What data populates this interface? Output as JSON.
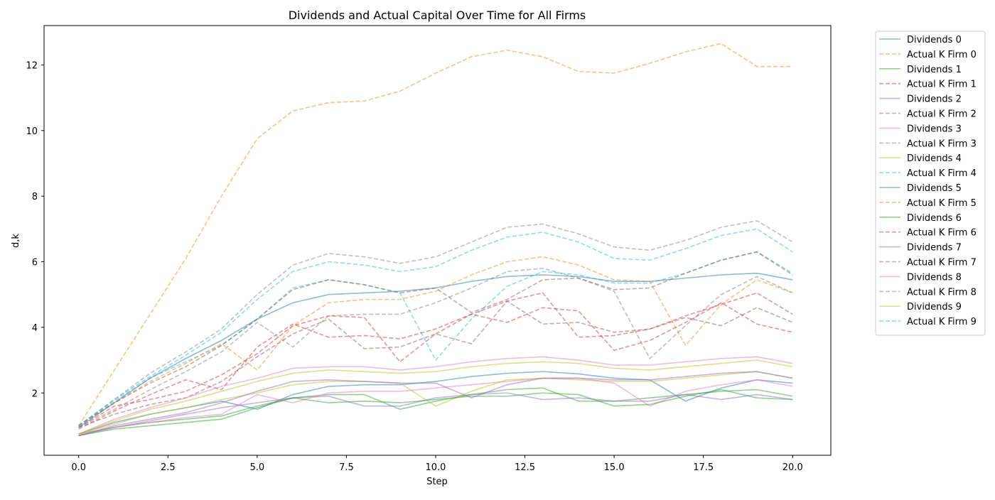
{
  "chart_data": {
    "type": "line",
    "title": "Dividends and Actual Capital Over Time for All Firms",
    "xlabel": "Step",
    "ylabel": "d,k",
    "xlim": [
      -0.97,
      21.07
    ],
    "ylim": [
      0.1,
      13.2
    ],
    "x_ticks": [
      0.0,
      2.5,
      5.0,
      7.5,
      10.0,
      12.5,
      15.0,
      17.5,
      20.0
    ],
    "x_tick_labels": [
      "0.0",
      "2.5",
      "5.0",
      "7.5",
      "10.0",
      "12.5",
      "15.0",
      "17.5",
      "20.0"
    ],
    "y_ticks": [
      2,
      4,
      6,
      8,
      10,
      12
    ],
    "y_tick_labels": [
      "2",
      "4",
      "6",
      "8",
      "10",
      "12"
    ],
    "grid": false,
    "legend_position": "outside-right",
    "x": [
      0,
      1,
      2,
      3,
      4,
      5,
      6,
      7,
      8,
      9,
      10,
      11,
      12,
      13,
      14,
      15,
      16,
      17,
      18,
      19,
      20
    ],
    "series": [
      {
        "name": "Dividends 0",
        "color": "#1f77b4",
        "dash": "solid",
        "values": [
          0.75,
          1.1,
          1.35,
          1.55,
          1.75,
          1.5,
          1.95,
          2.2,
          2.25,
          2.25,
          2.35,
          2.5,
          2.6,
          2.65,
          2.58,
          2.45,
          2.4,
          1.75,
          2.15,
          2.4,
          2.3
        ]
      },
      {
        "name": "Actual K Firm 0",
        "color": "#ff7f0e",
        "dash": "dashed",
        "values": [
          1.0,
          2.7,
          4.4,
          6.1,
          8.0,
          9.75,
          10.6,
          10.85,
          10.9,
          11.2,
          11.75,
          12.25,
          12.45,
          12.25,
          11.8,
          11.75,
          12.05,
          12.4,
          12.65,
          11.95,
          11.95
        ]
      },
      {
        "name": "Dividends 1",
        "color": "#2ca02c",
        "dash": "solid",
        "values": [
          0.7,
          0.95,
          1.1,
          1.2,
          1.3,
          1.6,
          1.85,
          1.95,
          1.95,
          1.5,
          1.75,
          1.95,
          2.1,
          2.15,
          1.75,
          1.75,
          1.85,
          1.95,
          2.05,
          2.1,
          1.9
        ]
      },
      {
        "name": "Actual K Firm 1",
        "color": "#d62728",
        "dash": "dashed",
        "values": [
          0.95,
          1.6,
          1.8,
          2.05,
          2.55,
          3.2,
          4.05,
          4.35,
          4.3,
          2.95,
          3.8,
          4.4,
          4.8,
          5.05,
          3.7,
          3.75,
          3.95,
          4.35,
          4.7,
          5.05,
          4.4
        ]
      },
      {
        "name": "Dividends 2",
        "color": "#9467bd",
        "dash": "solid",
        "values": [
          0.75,
          0.95,
          1.15,
          1.35,
          1.55,
          1.7,
          1.85,
          1.9,
          1.6,
          1.6,
          1.85,
          1.95,
          2.0,
          1.8,
          1.85,
          1.75,
          1.75,
          1.95,
          1.8,
          1.95,
          1.8
        ]
      },
      {
        "name": "Actual K Firm 2",
        "color": "#8c564b",
        "dash": "dashed",
        "values": [
          0.95,
          1.35,
          1.65,
          1.85,
          2.35,
          3.1,
          3.8,
          4.25,
          3.35,
          3.4,
          3.8,
          3.5,
          4.8,
          4.1,
          4.15,
          3.85,
          3.95,
          4.3,
          4.05,
          4.6,
          4.15
        ]
      },
      {
        "name": "Dividends 3",
        "color": "#e377c2",
        "dash": "solid",
        "values": [
          0.7,
          0.95,
          1.1,
          1.25,
          1.35,
          1.95,
          1.7,
          2.0,
          2.05,
          2.05,
          2.15,
          2.25,
          2.35,
          2.45,
          2.45,
          2.3,
          1.6,
          2.05,
          2.25,
          2.4,
          2.2
        ]
      },
      {
        "name": "Actual K Firm 3",
        "color": "#7f7f7f",
        "dash": "dashed",
        "values": [
          0.95,
          1.5,
          2.1,
          2.65,
          3.25,
          4.15,
          3.4,
          4.35,
          4.4,
          4.4,
          4.75,
          5.2,
          5.7,
          5.8,
          5.5,
          5.1,
          3.05,
          4.05,
          5.0,
          5.55,
          5.05
        ]
      },
      {
        "name": "Dividends 4",
        "color": "#bcbd22",
        "dash": "solid",
        "values": [
          0.75,
          1.05,
          1.35,
          1.55,
          1.8,
          2.0,
          2.25,
          2.35,
          2.35,
          2.3,
          1.6,
          2.05,
          2.4,
          2.45,
          2.4,
          2.35,
          2.35,
          2.45,
          2.55,
          2.65,
          2.45
        ]
      },
      {
        "name": "Actual K Firm 4",
        "color": "#17becf",
        "dash": "dashed",
        "values": [
          1.0,
          1.75,
          2.45,
          2.95,
          3.45,
          4.25,
          5.2,
          5.45,
          5.3,
          5.05,
          3.0,
          4.25,
          5.25,
          5.7,
          5.6,
          5.35,
          5.35,
          5.65,
          6.05,
          6.3,
          5.65
        ]
      },
      {
        "name": "Dividends 5",
        "color": "#1f77b4",
        "dash": "solid",
        "values": [
          0.95,
          1.7,
          2.45,
          3.05,
          3.6,
          4.25,
          4.75,
          5.0,
          5.05,
          5.1,
          5.2,
          5.4,
          5.55,
          5.6,
          5.55,
          5.4,
          5.4,
          5.5,
          5.6,
          5.65,
          5.45
        ]
      },
      {
        "name": "Actual K Firm 5",
        "color": "#ff7f0e",
        "dash": "dashed",
        "values": [
          1.0,
          1.7,
          2.35,
          2.9,
          3.5,
          2.7,
          4.05,
          4.75,
          4.85,
          4.85,
          5.1,
          5.6,
          6.0,
          6.15,
          5.9,
          5.45,
          5.4,
          3.45,
          4.7,
          5.45,
          5.05
        ]
      },
      {
        "name": "Dividends 6",
        "color": "#2ca02c",
        "dash": "solid",
        "values": [
          0.7,
          0.9,
          1.0,
          1.1,
          1.2,
          1.55,
          1.85,
          1.7,
          1.75,
          1.7,
          1.8,
          1.9,
          1.9,
          2.0,
          1.95,
          1.6,
          1.65,
          1.9,
          2.1,
          1.85,
          1.8
        ]
      },
      {
        "name": "Actual K Firm 6",
        "color": "#d62728",
        "dash": "dashed",
        "values": [
          0.9,
          1.45,
          1.95,
          2.4,
          2.1,
          3.4,
          4.1,
          3.7,
          3.75,
          3.65,
          3.95,
          4.4,
          4.15,
          4.6,
          4.5,
          3.3,
          3.6,
          4.15,
          4.75,
          4.1,
          3.85
        ]
      },
      {
        "name": "Dividends 7",
        "color": "#9467bd",
        "dash": "solid",
        "values": [
          0.7,
          1.0,
          1.2,
          1.4,
          1.7,
          2.05,
          2.35,
          2.4,
          2.35,
          2.3,
          2.3,
          1.85,
          2.25,
          2.45,
          2.45,
          2.4,
          2.4,
          2.5,
          2.6,
          2.65,
          2.45
        ]
      },
      {
        "name": "Actual K Firm 7",
        "color": "#8c564b",
        "dash": "dashed",
        "values": [
          1.0,
          1.7,
          2.3,
          2.8,
          3.45,
          4.25,
          5.15,
          5.45,
          5.3,
          5.05,
          5.2,
          4.45,
          4.85,
          5.45,
          5.5,
          5.15,
          5.2,
          5.65,
          6.05,
          6.3,
          5.6
        ]
      },
      {
        "name": "Dividends 8",
        "color": "#e377c2",
        "dash": "solid",
        "values": [
          0.75,
          1.2,
          1.55,
          1.85,
          2.2,
          2.45,
          2.75,
          2.8,
          2.8,
          2.7,
          2.8,
          2.95,
          3.05,
          3.1,
          3.0,
          2.85,
          2.85,
          2.95,
          3.05,
          3.1,
          2.9
        ]
      },
      {
        "name": "Actual K Firm 8",
        "color": "#7f7f7f",
        "dash": "dashed",
        "values": [
          1.0,
          1.8,
          2.6,
          3.25,
          3.95,
          5.0,
          5.9,
          6.25,
          6.15,
          5.95,
          6.15,
          6.6,
          7.05,
          7.15,
          6.85,
          6.45,
          6.35,
          6.65,
          7.05,
          7.25,
          6.6
        ]
      },
      {
        "name": "Dividends 9",
        "color": "#bcbd22",
        "dash": "solid",
        "values": [
          0.75,
          1.15,
          1.5,
          1.75,
          2.05,
          2.35,
          2.6,
          2.7,
          2.65,
          2.6,
          2.65,
          2.8,
          2.9,
          2.95,
          2.9,
          2.75,
          2.7,
          2.8,
          2.9,
          3.0,
          2.8
        ]
      },
      {
        "name": "Actual K Firm 9",
        "color": "#17becf",
        "dash": "dashed",
        "values": [
          1.0,
          1.8,
          2.5,
          3.15,
          3.85,
          4.85,
          5.7,
          6.0,
          5.9,
          5.7,
          5.85,
          6.35,
          6.75,
          6.9,
          6.6,
          6.1,
          6.05,
          6.4,
          6.8,
          7.0,
          6.3
        ]
      }
    ]
  }
}
